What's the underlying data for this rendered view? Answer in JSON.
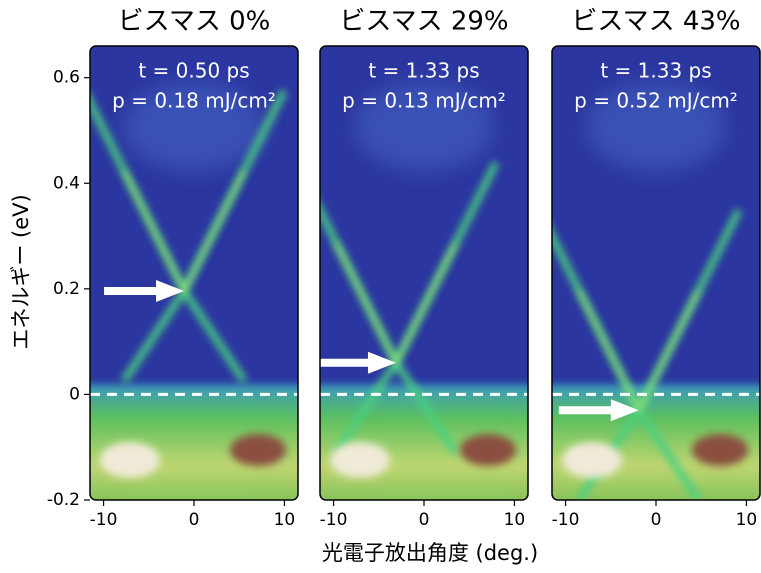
{
  "ylabel": "エネルギー (eV)",
  "xlabel": "光電子放出角度 (deg.)",
  "chart_data": [
    {
      "type": "heatmap",
      "title": "ビスマス 0%",
      "annotations": [
        "t = 0.50 ps",
        "p = 0.18 mJ/cm²"
      ],
      "xlim": [
        -11.5,
        11.5
      ],
      "xticks": [
        -10,
        0,
        10
      ],
      "ylim": [
        -0.2,
        0.66
      ],
      "yticks": [
        -0.2,
        0,
        0.2,
        0.4,
        0.6
      ],
      "reference_line": 0,
      "arrow": {
        "x": -1.1,
        "y": 0.196
      }
    },
    {
      "type": "heatmap",
      "title": "ビスマス 29%",
      "annotations": [
        "t = 1.33 ps",
        "p = 0.13 mJ/cm²"
      ],
      "xlim": [
        -11.5,
        11.5
      ],
      "xticks": [
        -10,
        0,
        10
      ],
      "ylim": [
        -0.2,
        0.66
      ],
      "reference_line": 0,
      "arrow": {
        "x": -3.1,
        "y": 0.06
      }
    },
    {
      "type": "heatmap",
      "title": "ビスマス 43%",
      "annotations": [
        "t = 1.33 ps",
        "p = 0.52 mJ/cm²"
      ],
      "xlim": [
        -11.5,
        11.5
      ],
      "xticks": [
        -10,
        0,
        10
      ],
      "ylim": [
        -0.2,
        0.66
      ],
      "reference_line": 0,
      "arrow": {
        "x": -1.9,
        "y": -0.03
      }
    }
  ]
}
